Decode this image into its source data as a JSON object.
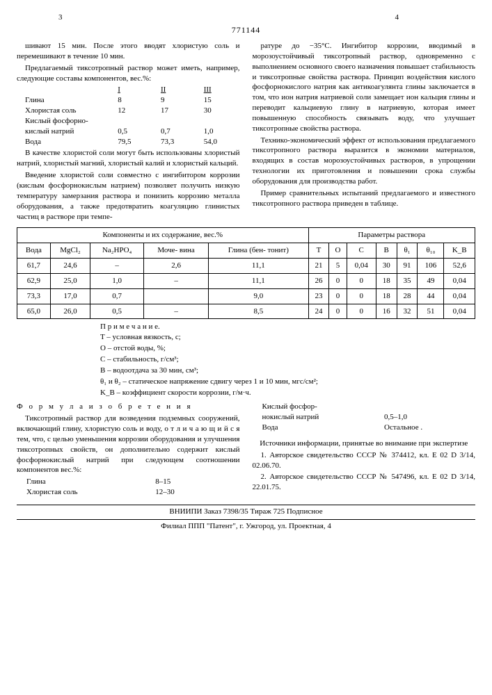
{
  "doc_number": "771144",
  "page_left": "3",
  "page_right": "4",
  "left_col": {
    "p1": "шивают 15 мин. После этого вводят хлористую соль и перемешивают в течение 10 мин.",
    "p2": "Предлагаемый тиксотропный раствор может иметь, например, следующие составы компонентов, вес.%:",
    "comp_hdr": [
      "",
      "I",
      "II",
      "III"
    ],
    "rows": [
      [
        "Глина",
        "8",
        "9",
        "15"
      ],
      [
        "Хлористая соль",
        "12",
        "17",
        "30"
      ],
      [
        "Кислый фосфорно-",
        "",
        "",
        ""
      ],
      [
        "кислый натрий",
        "0,5",
        "0,7",
        "1,0"
      ],
      [
        "Вода",
        "79,5",
        "73,3",
        "54,0"
      ]
    ],
    "p3": "В качестве хлористой соли могут быть использованы хлористый натрий, хлористый магний, хлористый калий и хлористый кальций.",
    "p4": "Введение хлористой соли совместно с ингибитором коррозии (кислым фосфорнокислым натрием) позволяет получить низкую температуру замерзания раствора и понизить коррозию металла оборудования, а также предотвратить коагуляцию глинистых частиц в растворе при темпе-"
  },
  "right_col": {
    "p1": "ратуре до −35°С. Ингибитор коррозии, вводимый в морозоустойчивый тиксотропный раствор, одновременно с выполнением основного своего назначения повышает стабильность и тиксотропные свойства раствора. Принцип воздействия кислого фосфорнокислого натрия как антикоагулянта глины заключается в том, что ион натрия натриевой соли замещает ион кальция глины и переводит кальциевую глину в натриевую, которая имеет повышенную способность связывать воду, что улучшает тиксотропные свойства раствора.",
    "p2": "Технико-экономический эффект от использования предлагаемого тиксотропного раствора выразится в экономии материалов, входящих в состав морозоустойчивых растворов, в упрощении технологии их приготовления и повышении срока службы оборудования для производства работ.",
    "p3": "Пример сравнительных испытаний предлагаемого и известного тиксотропного раствора приведен в таблице."
  },
  "table": {
    "group_left": "Компоненты и их содержание, вес.%",
    "group_right": "Параметры раствора",
    "cols": [
      "Вода",
      "MgCl₂",
      "Na₂HPO₄",
      "Моче-\nвина",
      "Глина\n(бен-\nтонит)",
      "T",
      "O",
      "C",
      "B",
      "θ₁",
      "θ₁₀",
      "K_B"
    ],
    "rows": [
      [
        "61,7",
        "24,6",
        "–",
        "2,6",
        "11,1",
        "21",
        "5",
        "0,04",
        "30",
        "91",
        "106",
        "52,6"
      ],
      [
        "62,9",
        "25,0",
        "1,0",
        "–",
        "11,1",
        "26",
        "0",
        "0",
        "18",
        "35",
        "49",
        "0,04"
      ],
      [
        "73,3",
        "17,0",
        "0,7",
        "",
        "9,0",
        "23",
        "0",
        "0",
        "18",
        "28",
        "44",
        "0,04"
      ],
      [
        "65,0",
        "26,0",
        "0,5",
        "–",
        "8,5",
        "24",
        "0",
        "0",
        "16",
        "32",
        "51",
        "0,04"
      ]
    ]
  },
  "notes_label": "П р и м е ч а н и е.",
  "notes": [
    "T – условная вязкость, с;",
    "O – отстой воды, %;",
    "C – стабильность, г/см³;",
    "B – водоотдача за 30 мин, см³;",
    "θ₁ и θ₂ – статическое напряжение сдвигу через 1 и 10 мин, мгс/см²;",
    "K_B – коэффициент скорости коррозии, г/м·ч."
  ],
  "formula_title": "Ф о р м у л а   и з о б р е т е н и я",
  "formula_body": "Тиксотропный раствор для возведения подземных сооружений, включающий глину, хлористую соль и воду, о т л и ч а ю щ и й с я тем, что, с целью уменьшения коррозии оборудования и улучшения тиксотропных свойств, он дополнительно содержит кислый фосфорнокислый натрий при следующем соотношении компонентов вес.%:",
  "ranges": [
    [
      "Глина",
      "8–15"
    ],
    [
      "Хлористая соль",
      "12–30"
    ],
    [
      "Кислый фосфор-",
      ""
    ],
    [
      "нокислый натрий",
      "0,5–1,0"
    ],
    [
      "Вода",
      "Остальное ."
    ]
  ],
  "sources_title": "Источники информации, принятые во внимание при экспертизе",
  "sources": [
    "1. Авторское свидетельство СССР № 374412, кл. E 02 D 3/14, 02.06.70.",
    "2. Авторское свидетельство СССР № 547496, кл. E 02 D 3/14, 22.01.75."
  ],
  "footer1": "ВНИИПИ Заказ 7398/35      Тираж 725      Подписное",
  "footer2": "Филиал ППП \"Патент\", г. Ужгород, ул. Проектная, 4"
}
